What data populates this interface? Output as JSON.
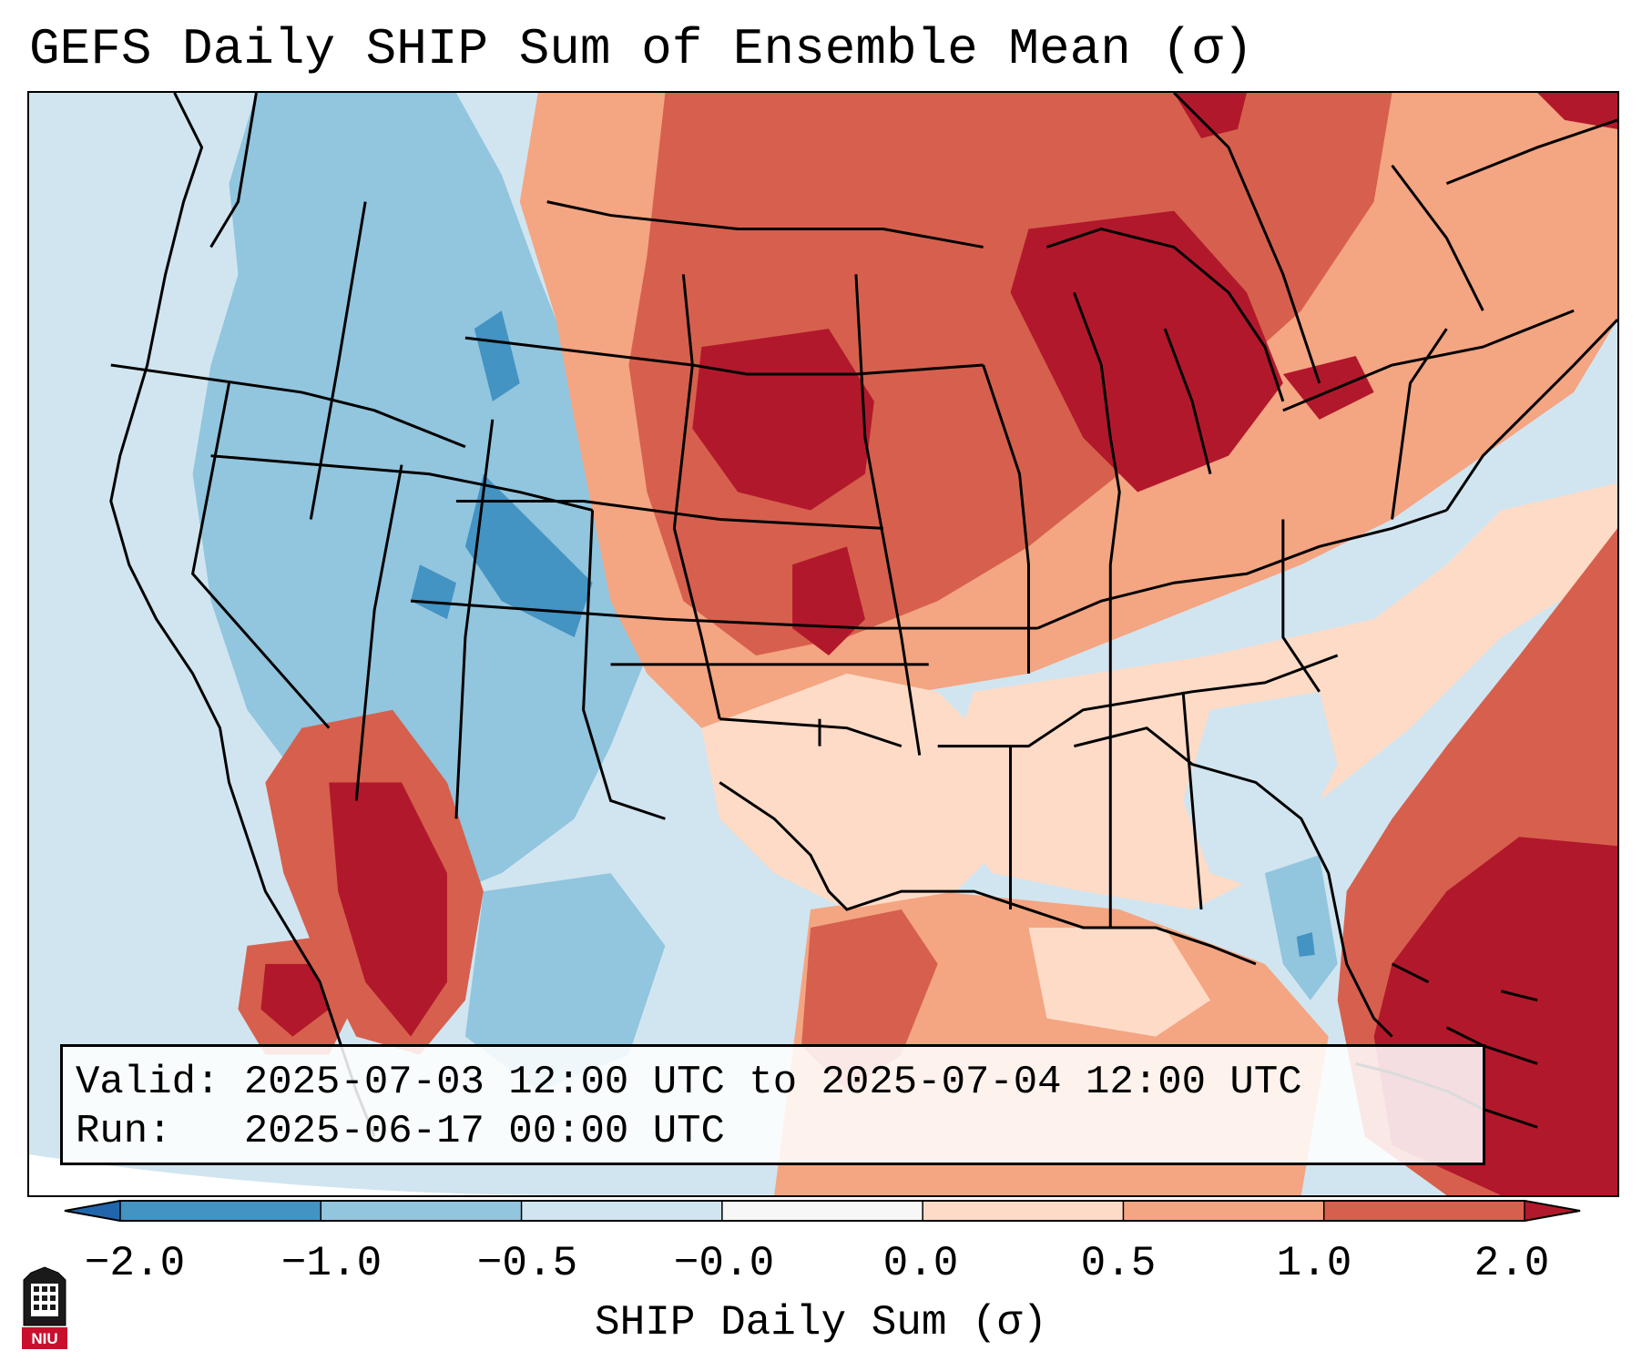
{
  "title": "GEFS Daily SHIP Sum of Ensemble Mean (σ)",
  "info": {
    "valid_label": "Valid:",
    "valid_value": "2025-07-03 12:00 UTC to 2025-07-04 12:00 UTC",
    "run_label": "Run:",
    "run_value": "2025-06-17 00:00 UTC"
  },
  "colorbar": {
    "label": "SHIP Daily Sum (σ)",
    "tick_labels": [
      "−2.0",
      "−1.0",
      "−0.5",
      "−0.0",
      "0.0",
      "0.5",
      "1.0",
      "2.0"
    ],
    "colors": [
      "#2166ac",
      "#4393c3",
      "#92c5de",
      "#d1e5f0",
      "#f7f7f7",
      "#fddbc7",
      "#f4a582",
      "#d6604d",
      "#b2182b"
    ]
  },
  "logo": {
    "text": "NIU"
  }
}
